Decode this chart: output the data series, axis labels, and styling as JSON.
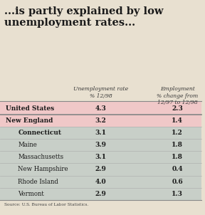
{
  "title": "...is partly explained by low\nunemployment rates...",
  "col1_header": "Unemployment rate\n% 12/98",
  "col2_header": "Employment\n% change from\n12/97 to 12/98",
  "rows": [
    {
      "label": "United States",
      "unemp": "4.3",
      "emp": "2.3",
      "bold": true,
      "indent": 0,
      "bg": "#f0c8c8"
    },
    {
      "label": "New England",
      "unemp": "3.2",
      "emp": "1.4",
      "bold": true,
      "indent": 0,
      "bg": "#f0c8c8"
    },
    {
      "label": "Connecticut",
      "unemp": "3.1",
      "emp": "1.2",
      "bold": true,
      "indent": 1,
      "bg": "#c8cfc8"
    },
    {
      "label": "Maine",
      "unemp": "3.9",
      "emp": "1.8",
      "bold": false,
      "indent": 1,
      "bg": "#c8cfc8"
    },
    {
      "label": "Massachusetts",
      "unemp": "3.1",
      "emp": "1.8",
      "bold": false,
      "indent": 1,
      "bg": "#c8cfc8"
    },
    {
      "label": "New Hampshire",
      "unemp": "2.9",
      "emp": "0.4",
      "bold": false,
      "indent": 1,
      "bg": "#c8cfc8"
    },
    {
      "label": "Rhode Island",
      "unemp": "4.0",
      "emp": "0.6",
      "bold": false,
      "indent": 1,
      "bg": "#c8cfc8"
    },
    {
      "label": "Vermont",
      "unemp": "2.9",
      "emp": "1.3",
      "bold": false,
      "indent": 1,
      "bg": "#c8cfc8"
    }
  ],
  "source": "Source: U.S. Bureau of Labor Statistics.",
  "bg_color": "#e8e0d0",
  "title_color": "#1a1a1a",
  "header_color": "#3a3a3a"
}
